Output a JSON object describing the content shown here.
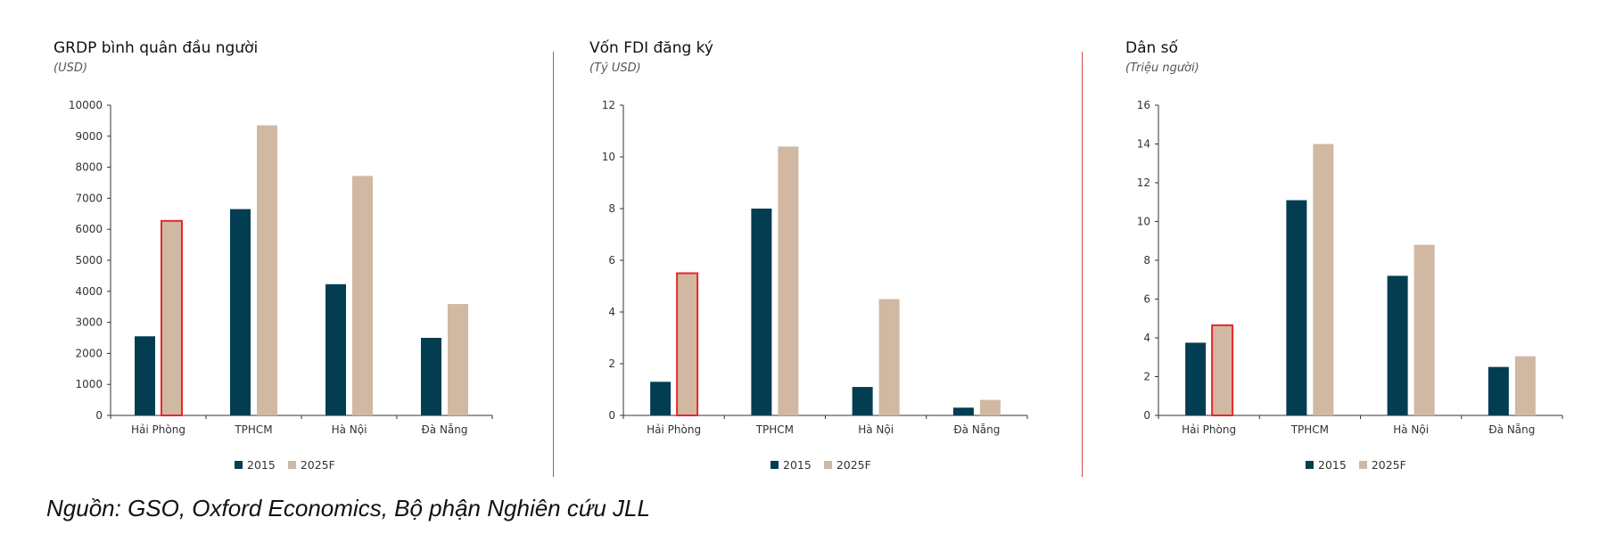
{
  "colors": {
    "s2015": "#033d52",
    "s2025": "#d1b8a3",
    "highlight": "#e8272c",
    "divider": "#d94a4a"
  },
  "source": "Nguồn: GSO, Oxford Economics, Bộ phận Nghiên cứu JLL",
  "chart_data": [
    {
      "type": "bar",
      "title": "GRDP bình quân đầu người",
      "unit": "(USD)",
      "categories": [
        "Hải Phòng",
        "TPHCM",
        "Hà Nội",
        "Đà Nẵng"
      ],
      "series": [
        {
          "name": "2015",
          "values": [
            2550,
            6650,
            4230,
            2500
          ]
        },
        {
          "name": "2025F",
          "values": [
            6270,
            9350,
            7720,
            3590
          ]
        }
      ],
      "ylim": [
        0,
        10000
      ],
      "yticks": [
        0,
        1000,
        2000,
        3000,
        4000,
        5000,
        6000,
        7000,
        8000,
        9000,
        10000
      ],
      "highlight_category": "Hải Phòng",
      "legend": "bottom-center",
      "grid": false
    },
    {
      "type": "bar",
      "title": "Vốn FDI đăng ký",
      "unit": "(Tỷ USD)",
      "categories": [
        "Hải Phòng",
        "TPHCM",
        "Hà Nội",
        "Đà Nẵng"
      ],
      "series": [
        {
          "name": "2015",
          "values": [
            1.3,
            8.0,
            1.1,
            0.3
          ]
        },
        {
          "name": "2025F",
          "values": [
            5.5,
            10.4,
            4.5,
            0.6
          ]
        }
      ],
      "ylim": [
        0,
        12
      ],
      "yticks": [
        0,
        2,
        4,
        6,
        8,
        10,
        12
      ],
      "highlight_category": "Hải Phòng",
      "legend": "bottom-center",
      "grid": false
    },
    {
      "type": "bar",
      "title": "Dân số",
      "unit": "(Triệu người)",
      "categories": [
        "Hải Phòng",
        "TPHCM",
        "Hà Nội",
        "Đà Nẵng"
      ],
      "series": [
        {
          "name": "2015",
          "values": [
            3.75,
            11.1,
            7.2,
            2.5
          ]
        },
        {
          "name": "2025F",
          "values": [
            4.65,
            14.0,
            8.8,
            3.05
          ]
        }
      ],
      "ylim": [
        0,
        16
      ],
      "yticks": [
        0,
        2,
        4,
        6,
        8,
        10,
        12,
        14,
        16
      ],
      "highlight_category": "Hải Phòng",
      "legend": "bottom-center",
      "grid": false
    }
  ]
}
